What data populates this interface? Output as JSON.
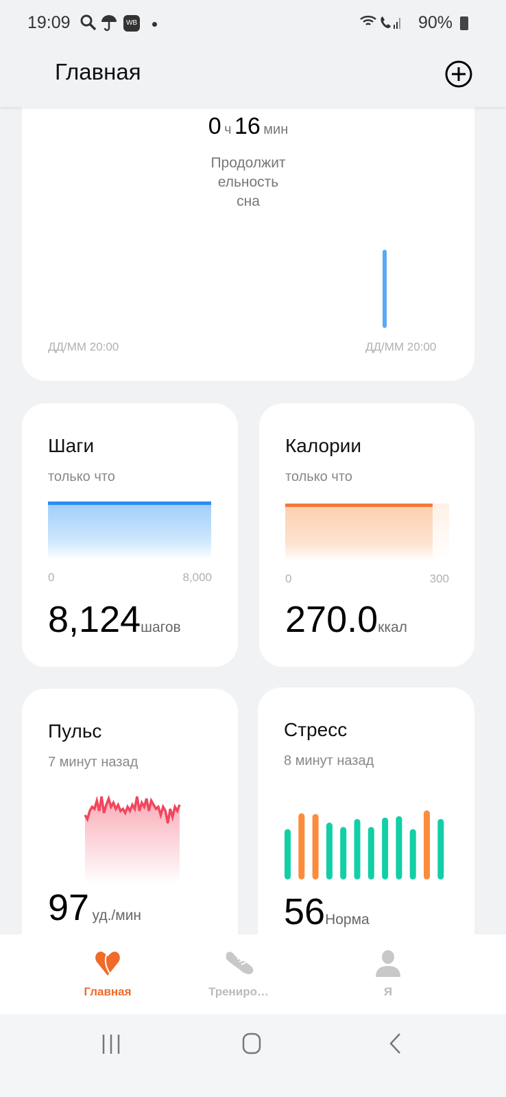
{
  "status_bar": {
    "time": "19:09",
    "wb_badge": "WB",
    "battery": "90%",
    "icons": [
      "search-icon",
      "umbrella-icon",
      "wb-app-icon",
      "dot-icon",
      "wifi-icon",
      "wifi-call-icon",
      "signal-icon",
      "battery-icon"
    ]
  },
  "header": {
    "title": "Главная",
    "add_icon": "plus-circle-icon"
  },
  "sleep": {
    "hours": "0",
    "hours_unit": "ч",
    "minutes": "16",
    "minutes_unit": "мин",
    "label_lines": [
      "Продолжит",
      "ельность",
      "сна"
    ],
    "x_start": "ДД/ММ 20:00",
    "x_end": "ДД/ММ 20:00",
    "bar_color": "#5aa9f5"
  },
  "steps": {
    "title": "Шаги",
    "updated": "только что",
    "axis_min": "0",
    "axis_max": "8,000",
    "value": "8,124",
    "unit": "шагов",
    "progress": 1.0,
    "color": "#2a8df0"
  },
  "calories": {
    "title": "Калории",
    "updated": "только что",
    "axis_min": "0",
    "axis_max": "300",
    "value": "270.0",
    "unit": "ккал",
    "progress": 0.9,
    "color": "#f07a3a"
  },
  "pulse": {
    "title": "Пульс",
    "updated": "7 минут назад",
    "value": "97",
    "unit": "уд./мин",
    "color": "#f0475e",
    "series": [
      88,
      86,
      90,
      92,
      91,
      95,
      90,
      97,
      89,
      93,
      96,
      92,
      94,
      91,
      93,
      90,
      91,
      89,
      92,
      90,
      93,
      91,
      97,
      90,
      94,
      92,
      96,
      90,
      95,
      93,
      91,
      92,
      88,
      92,
      90,
      84,
      91,
      87,
      92,
      90,
      93
    ]
  },
  "stress": {
    "title": "Стресс",
    "updated": "8 минут назад",
    "value": "56",
    "unit": "Норма",
    "bars": [
      {
        "v": 70,
        "level": "normal"
      },
      {
        "v": 92,
        "level": "high"
      },
      {
        "v": 91,
        "level": "high"
      },
      {
        "v": 79,
        "level": "normal"
      },
      {
        "v": 73,
        "level": "normal"
      },
      {
        "v": 84,
        "level": "normal"
      },
      {
        "v": 73,
        "level": "normal"
      },
      {
        "v": 86,
        "level": "normal"
      },
      {
        "v": 88,
        "level": "normal"
      },
      {
        "v": 70,
        "level": "normal"
      },
      {
        "v": 96,
        "level": "high"
      },
      {
        "v": 84,
        "level": "normal"
      }
    ],
    "colors": {
      "normal": "#12cfa6",
      "high": "#fb8c3c"
    }
  },
  "bottom_nav": {
    "items": [
      {
        "label": "Главная",
        "icon": "heart-icon",
        "active": true
      },
      {
        "label": "Трениро…",
        "icon": "sneaker-icon",
        "active": false
      },
      {
        "label": "Я",
        "icon": "person-icon",
        "active": false
      }
    ],
    "active_color": "#f06a2a"
  },
  "system_nav": {
    "icons": [
      "recent-apps-icon",
      "home-icon",
      "back-icon"
    ]
  }
}
